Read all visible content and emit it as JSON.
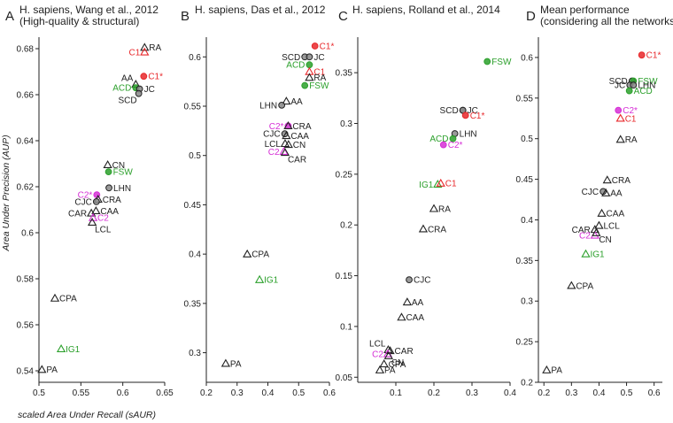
{
  "colors": {
    "black": "#222222",
    "red": "#e8282b",
    "green": "#2ca02c",
    "magenta": "#d62fd6",
    "gray_fill": "#888888"
  },
  "figure": {
    "ylabel": "Area Under Precision (AUP)",
    "xlabel": "scaled Area Under Recall (sAUR)"
  },
  "chart_data": [
    {
      "type": "scatter",
      "letter": "A",
      "title": [
        "H. sapiens, Wang et al., 2012",
        "(High-quality & structural)"
      ],
      "xlim": [
        0.5,
        0.65
      ],
      "ylim": [
        0.535,
        0.685
      ],
      "xticks": [
        0.5,
        0.55,
        0.6,
        0.65
      ],
      "xticklabels": [
        "0.5",
        "0.55",
        "0.6",
        "0.65"
      ],
      "yticks": [
        0.54,
        0.56,
        0.58,
        0.6,
        0.62,
        0.64,
        0.66,
        0.68
      ],
      "yticklabels": [
        "0.54",
        "0.56",
        "0.58",
        "0.6",
        "0.62",
        "0.64",
        "0.66",
        "0.68"
      ],
      "points": [
        {
          "label": "RA",
          "x": 0.626,
          "y": 0.6805,
          "marker": "triangle",
          "color": "black",
          "pos": "right"
        },
        {
          "label": "C1",
          "x": 0.626,
          "y": 0.6785,
          "marker": "triangle",
          "color": "red",
          "pos": "left"
        },
        {
          "label": "C1*",
          "x": 0.625,
          "y": 0.668,
          "marker": "circle",
          "color": "red",
          "pos": "right"
        },
        {
          "label": "AA",
          "x": 0.6155,
          "y": 0.6645,
          "marker": "triangle",
          "color": "black",
          "pos": "above-left"
        },
        {
          "label": "ACD",
          "x": 0.6155,
          "y": 0.663,
          "marker": "circle",
          "color": "green",
          "pos": "left"
        },
        {
          "label": "JC",
          "x": 0.62,
          "y": 0.6625,
          "marker": "circle",
          "color": "gray",
          "pos": "right"
        },
        {
          "label": "SCD",
          "x": 0.619,
          "y": 0.6605,
          "marker": "circle",
          "color": "gray",
          "pos": "below-left"
        },
        {
          "label": "CN",
          "x": 0.582,
          "y": 0.6295,
          "marker": "triangle",
          "color": "black",
          "pos": "right"
        },
        {
          "label": "FSW",
          "x": 0.583,
          "y": 0.6265,
          "marker": "circle",
          "color": "green",
          "pos": "right"
        },
        {
          "label": "LHN",
          "x": 0.5835,
          "y": 0.6195,
          "marker": "circle",
          "color": "gray",
          "pos": "right"
        },
        {
          "label": "C2*",
          "x": 0.569,
          "y": 0.6165,
          "marker": "circle",
          "color": "magenta",
          "pos": "left"
        },
        {
          "label": "CRA",
          "x": 0.5705,
          "y": 0.6145,
          "marker": "triangle",
          "color": "black",
          "pos": "right"
        },
        {
          "label": "CJC",
          "x": 0.5685,
          "y": 0.6135,
          "marker": "circle",
          "color": "gray",
          "pos": "left"
        },
        {
          "label": "CAA",
          "x": 0.568,
          "y": 0.6095,
          "marker": "triangle",
          "color": "black",
          "pos": "right"
        },
        {
          "label": "CAR",
          "x": 0.5625,
          "y": 0.6085,
          "marker": "triangle",
          "color": "black",
          "pos": "left"
        },
        {
          "label": "C2",
          "x": 0.5645,
          "y": 0.6065,
          "marker": "triangle",
          "color": "magenta",
          "pos": "right"
        },
        {
          "label": "LCL",
          "x": 0.5635,
          "y": 0.6045,
          "marker": "triangle",
          "color": "black",
          "pos": "below-right"
        },
        {
          "label": "CPA",
          "x": 0.519,
          "y": 0.5715,
          "marker": "triangle",
          "color": "black",
          "pos": "right"
        },
        {
          "label": "IG1",
          "x": 0.5265,
          "y": 0.5495,
          "marker": "triangle",
          "color": "green",
          "pos": "right"
        },
        {
          "label": "PA",
          "x": 0.5035,
          "y": 0.5405,
          "marker": "triangle",
          "color": "black",
          "pos": "right"
        }
      ]
    },
    {
      "type": "scatter",
      "letter": "B",
      "title": [
        "H. sapiens, Das et al., 2012"
      ],
      "xlim": [
        0.2,
        0.6
      ],
      "ylim": [
        0.27,
        0.62
      ],
      "xticks": [
        0.2,
        0.3,
        0.4,
        0.5,
        0.6
      ],
      "xticklabels": [
        "0.2",
        "0.3",
        "0.4",
        "0.5",
        "0.6"
      ],
      "yticks": [
        0.3,
        0.35,
        0.4,
        0.45,
        0.5,
        0.55,
        0.6
      ],
      "yticklabels": [
        "0.3",
        "0.35",
        "0.4",
        "0.45",
        "0.5",
        "0.55",
        "0.6"
      ],
      "points": [
        {
          "label": "C1*",
          "x": 0.553,
          "y": 0.611,
          "marker": "circle",
          "color": "red",
          "pos": "right"
        },
        {
          "label": "SCD",
          "x": 0.52,
          "y": 0.6,
          "marker": "circle",
          "color": "gray",
          "pos": "left"
        },
        {
          "label": "JC",
          "x": 0.535,
          "y": 0.6,
          "marker": "circle",
          "color": "gray",
          "pos": "right"
        },
        {
          "label": "ACD",
          "x": 0.535,
          "y": 0.592,
          "marker": "circle",
          "color": "green",
          "pos": "left"
        },
        {
          "label": "C1",
          "x": 0.535,
          "y": 0.585,
          "marker": "triangle",
          "color": "red",
          "pos": "right"
        },
        {
          "label": "RA",
          "x": 0.535,
          "y": 0.579,
          "marker": "triangle",
          "color": "black",
          "pos": "right"
        },
        {
          "label": "FSW",
          "x": 0.52,
          "y": 0.571,
          "marker": "circle",
          "color": "green",
          "pos": "right"
        },
        {
          "label": "AA",
          "x": 0.46,
          "y": 0.555,
          "marker": "triangle",
          "color": "black",
          "pos": "right"
        },
        {
          "label": "LHN",
          "x": 0.445,
          "y": 0.551,
          "marker": "circle",
          "color": "gray",
          "pos": "left"
        },
        {
          "label": "C2*",
          "x": 0.466,
          "y": 0.53,
          "marker": "circle",
          "color": "magenta",
          "pos": "left"
        },
        {
          "label": "CRA",
          "x": 0.466,
          "y": 0.53,
          "marker": "triangle",
          "color": "black",
          "pos": "right"
        },
        {
          "label": "CJC",
          "x": 0.455,
          "y": 0.522,
          "marker": "circle",
          "color": "gray",
          "pos": "left"
        },
        {
          "label": "CAA",
          "x": 0.46,
          "y": 0.52,
          "marker": "triangle",
          "color": "black",
          "pos": "right"
        },
        {
          "label": "LCL",
          "x": 0.456,
          "y": 0.512,
          "marker": "triangle",
          "color": "black",
          "pos": "left"
        },
        {
          "label": "CN",
          "x": 0.467,
          "y": 0.511,
          "marker": "triangle",
          "color": "black",
          "pos": "right"
        },
        {
          "label": "C2",
          "x": 0.452,
          "y": 0.504,
          "marker": "triangle",
          "color": "magenta",
          "pos": "left"
        },
        {
          "label": "CAR",
          "x": 0.456,
          "y": 0.503,
          "marker": "triangle",
          "color": "black",
          "pos": "below-right"
        },
        {
          "label": "CPA",
          "x": 0.333,
          "y": 0.4,
          "marker": "triangle",
          "color": "black",
          "pos": "right"
        },
        {
          "label": "IG1",
          "x": 0.373,
          "y": 0.374,
          "marker": "triangle",
          "color": "green",
          "pos": "right"
        },
        {
          "label": "PA",
          "x": 0.263,
          "y": 0.289,
          "marker": "triangle",
          "color": "black",
          "pos": "right"
        }
      ]
    },
    {
      "type": "scatter",
      "letter": "C",
      "title": [
        "H. sapiens, Rolland et al., 2014"
      ],
      "xlim": [
        0.0,
        0.4
      ],
      "ylim": [
        0.045,
        0.385
      ],
      "xticks": [
        0.1,
        0.2,
        0.3,
        0.4
      ],
      "xticklabels": [
        "0.1",
        "0.2",
        "0.3",
        "0.4"
      ],
      "yticks": [
        0.05,
        0.1,
        0.15,
        0.2,
        0.25,
        0.3,
        0.35
      ],
      "yticklabels": [
        "0.05",
        "0.1",
        "0.15",
        "0.2",
        "0.25",
        "0.3",
        "0.35"
      ],
      "points": [
        {
          "label": "FSW",
          "x": 0.34,
          "y": 0.361,
          "marker": "circle",
          "color": "green",
          "pos": "right"
        },
        {
          "label": "SCD",
          "x": 0.276,
          "y": 0.313,
          "marker": "circle",
          "color": "gray",
          "pos": "left"
        },
        {
          "label": "JC",
          "x": 0.276,
          "y": 0.313,
          "marker": "circle",
          "color": "gray",
          "pos": "right"
        },
        {
          "label": "C1*",
          "x": 0.283,
          "y": 0.308,
          "marker": "circle",
          "color": "red",
          "pos": "right"
        },
        {
          "label": "LHN",
          "x": 0.255,
          "y": 0.29,
          "marker": "circle",
          "color": "gray",
          "pos": "right"
        },
        {
          "label": "ACD",
          "x": 0.25,
          "y": 0.285,
          "marker": "circle",
          "color": "green",
          "pos": "left"
        },
        {
          "label": "C2*",
          "x": 0.225,
          "y": 0.279,
          "marker": "circle",
          "color": "magenta",
          "pos": "right"
        },
        {
          "label": "IG1",
          "x": 0.21,
          "y": 0.24,
          "marker": "triangle",
          "color": "green",
          "pos": "left"
        },
        {
          "label": "C1",
          "x": 0.218,
          "y": 0.241,
          "marker": "triangle",
          "color": "red",
          "pos": "right"
        },
        {
          "label": "RA",
          "x": 0.2,
          "y": 0.216,
          "marker": "triangle",
          "color": "black",
          "pos": "right"
        },
        {
          "label": "CRA",
          "x": 0.172,
          "y": 0.196,
          "marker": "triangle",
          "color": "black",
          "pos": "right"
        },
        {
          "label": "CJC",
          "x": 0.135,
          "y": 0.146,
          "marker": "circle",
          "color": "gray",
          "pos": "right"
        },
        {
          "label": "AA",
          "x": 0.13,
          "y": 0.124,
          "marker": "triangle",
          "color": "black",
          "pos": "right"
        },
        {
          "label": "CAA",
          "x": 0.115,
          "y": 0.109,
          "marker": "triangle",
          "color": "black",
          "pos": "right"
        },
        {
          "label": "LCL",
          "x": 0.08,
          "y": 0.077,
          "marker": "triangle",
          "color": "black",
          "pos": "above-left"
        },
        {
          "label": "CAR",
          "x": 0.085,
          "y": 0.076,
          "marker": "triangle",
          "color": "black",
          "pos": "right"
        },
        {
          "label": "C2",
          "x": 0.079,
          "y": 0.073,
          "marker": "triangle",
          "color": "magenta",
          "pos": "left"
        },
        {
          "label": "CN",
          "x": 0.081,
          "y": 0.071,
          "marker": "triangle",
          "color": "black",
          "pos": "below-right"
        },
        {
          "label": "CPA",
          "x": 0.069,
          "y": 0.063,
          "marker": "triangle",
          "color": "black",
          "pos": "right"
        },
        {
          "label": "PA",
          "x": 0.058,
          "y": 0.057,
          "marker": "triangle",
          "color": "black",
          "pos": "right"
        }
      ]
    },
    {
      "type": "scatter",
      "letter": "D",
      "title": [
        "Mean performance",
        "(considering all the networks)"
      ],
      "xlim": [
        0.18,
        0.63
      ],
      "ylim": [
        0.2,
        0.625
      ],
      "xticks": [
        0.2,
        0.3,
        0.4,
        0.5,
        0.6
      ],
      "xticklabels": [
        "0.2",
        "0.3",
        "0.4",
        "0.5",
        "0.6"
      ],
      "yticks": [
        0.2,
        0.25,
        0.3,
        0.35,
        0.4,
        0.45,
        0.5,
        0.55,
        0.6
      ],
      "yticklabels": [
        "0.2",
        "0.25",
        "0.3",
        "0.35",
        "0.4",
        "0.45",
        "0.5",
        "0.55",
        "0.6"
      ],
      "points": [
        {
          "label": "C1*",
          "x": 0.555,
          "y": 0.603,
          "marker": "circle",
          "color": "red",
          "pos": "right"
        },
        {
          "label": "SCD",
          "x": 0.52,
          "y": 0.571,
          "marker": "circle",
          "color": "gray",
          "pos": "left"
        },
        {
          "label": "FSW",
          "x": 0.525,
          "y": 0.571,
          "marker": "circle",
          "color": "green",
          "pos": "right"
        },
        {
          "label": "JC",
          "x": 0.512,
          "y": 0.566,
          "marker": "circle",
          "color": "gray",
          "pos": "left"
        },
        {
          "label": "LHN",
          "x": 0.525,
          "y": 0.566,
          "marker": "circle",
          "color": "gray",
          "pos": "right"
        },
        {
          "label": "ACD",
          "x": 0.51,
          "y": 0.559,
          "marker": "circle",
          "color": "green",
          "pos": "right"
        },
        {
          "label": "C2*",
          "x": 0.47,
          "y": 0.535,
          "marker": "circle",
          "color": "magenta",
          "pos": "right"
        },
        {
          "label": "C1",
          "x": 0.478,
          "y": 0.525,
          "marker": "triangle",
          "color": "red",
          "pos": "right"
        },
        {
          "label": "RA",
          "x": 0.478,
          "y": 0.499,
          "marker": "triangle",
          "color": "black",
          "pos": "right"
        },
        {
          "label": "CRA",
          "x": 0.43,
          "y": 0.449,
          "marker": "triangle",
          "color": "black",
          "pos": "right"
        },
        {
          "label": "CJC",
          "x": 0.415,
          "y": 0.435,
          "marker": "circle",
          "color": "gray",
          "pos": "left"
        },
        {
          "label": "AA",
          "x": 0.425,
          "y": 0.433,
          "marker": "triangle",
          "color": "black",
          "pos": "right"
        },
        {
          "label": "CAA",
          "x": 0.41,
          "y": 0.408,
          "marker": "triangle",
          "color": "black",
          "pos": "right"
        },
        {
          "label": "LCL",
          "x": 0.4,
          "y": 0.393,
          "marker": "triangle",
          "color": "black",
          "pos": "right"
        },
        {
          "label": "CAR",
          "x": 0.385,
          "y": 0.388,
          "marker": "triangle",
          "color": "black",
          "pos": "left"
        },
        {
          "label": "C2",
          "x": 0.385,
          "y": 0.381,
          "marker": "triangle",
          "color": "magenta",
          "pos": "left"
        },
        {
          "label": "CN",
          "x": 0.39,
          "y": 0.384,
          "marker": "triangle",
          "color": "black",
          "pos": "below-right"
        },
        {
          "label": "IG1",
          "x": 0.352,
          "y": 0.358,
          "marker": "triangle",
          "color": "green",
          "pos": "right"
        },
        {
          "label": "CPA",
          "x": 0.3,
          "y": 0.319,
          "marker": "triangle",
          "color": "black",
          "pos": "right"
        },
        {
          "label": "PA",
          "x": 0.21,
          "y": 0.215,
          "marker": "triangle",
          "color": "black",
          "pos": "right"
        }
      ]
    }
  ]
}
